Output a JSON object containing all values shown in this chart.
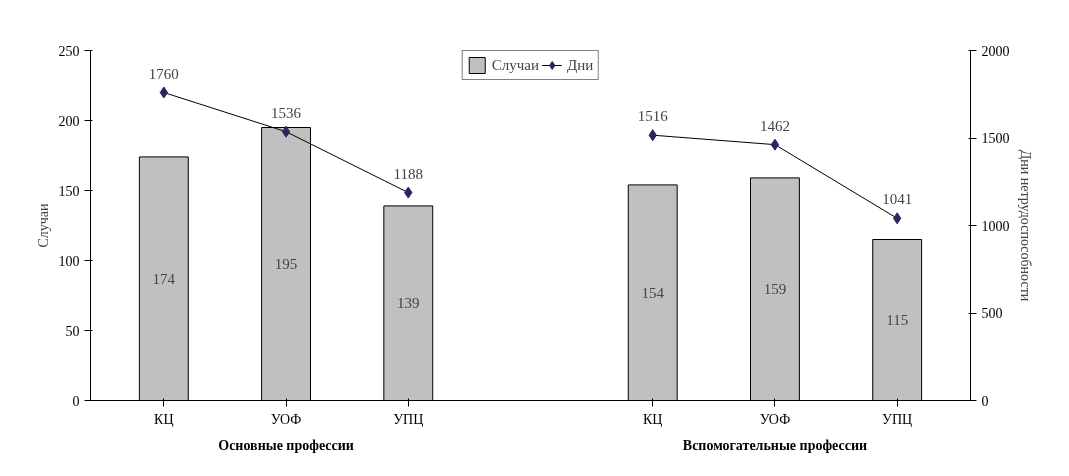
{
  "chart_data": {
    "type": "bar",
    "categories": [
      "КЦ",
      "УОФ",
      "УПЦ",
      null,
      "КЦ",
      "УОФ",
      "УПЦ"
    ],
    "series": [
      {
        "name": "Случаи",
        "color": "#c0c0c0",
        "values": [
          174,
          195,
          139,
          null,
          154,
          159,
          115
        ]
      },
      {
        "name": "Дни",
        "type": "line",
        "axis": "y2",
        "color": "#262660",
        "values": [
          1760,
          1536,
          1188,
          null,
          1516,
          1462,
          1041
        ]
      }
    ],
    "ylabel": "Случаи",
    "y2label": "Дни нетрудоспособности",
    "ylim": [
      0,
      250
    ],
    "yticks": [
      0,
      50,
      100,
      150,
      200,
      250
    ],
    "y2lim": [
      0,
      2000
    ],
    "y2ticks": [
      0,
      500,
      1000,
      1500,
      2000
    ],
    "annotations": [
      "Основные профессии",
      "Вспомогательные профессии"
    ],
    "data_labels": true,
    "legend": "top",
    "marker": "diamond",
    "grid": false
  }
}
